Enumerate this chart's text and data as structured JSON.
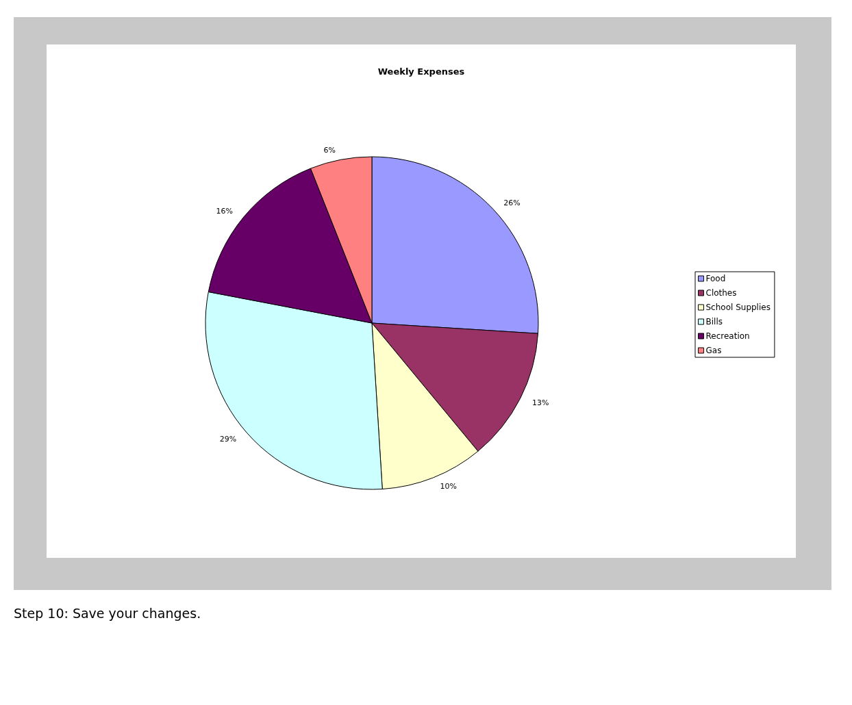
{
  "chart_data": {
    "type": "pie",
    "title": "Weekly Expenses",
    "categories": [
      "Food",
      "Clothes",
      "School Supplies",
      "Bills",
      "Recreation",
      "Gas"
    ],
    "values": [
      26,
      13,
      10,
      29,
      16,
      6
    ],
    "colors": [
      "#9999ff",
      "#993366",
      "#ffffcc",
      "#ccffff",
      "#660066",
      "#ff8080"
    ],
    "value_labels": [
      "26%",
      "13%",
      "10%",
      "29%",
      "16%",
      "6%"
    ],
    "legend": "right",
    "annotations": [
      "Step 10: Save your changes."
    ]
  }
}
